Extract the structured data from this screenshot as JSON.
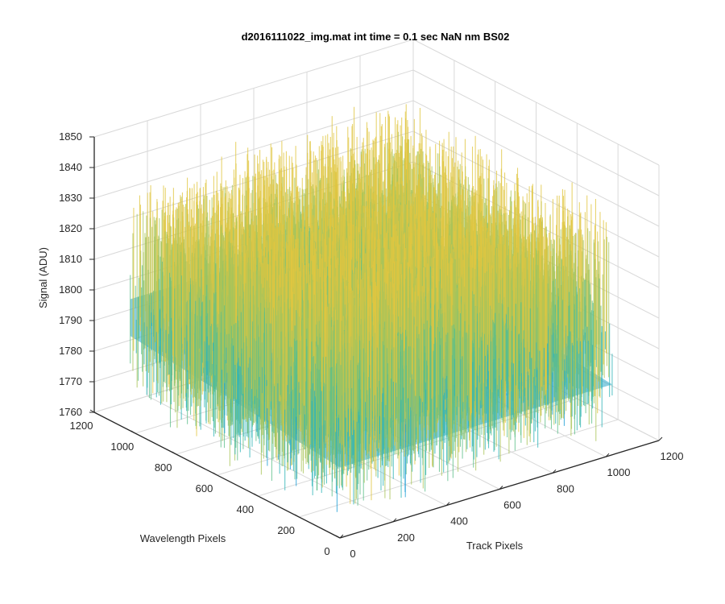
{
  "chart_data": {
    "type": "surface",
    "title": "d2016111022_img.mat int time = 0.1 sec  NaN nm BS02",
    "xlabel": "Track Pixels",
    "ylabel": "Wavelength Pixels",
    "zlabel": "Signal (ADU)",
    "xlim": [
      0,
      1200
    ],
    "ylim": [
      0,
      1200
    ],
    "zlim": [
      1760,
      1850
    ],
    "x_ticks": [
      "0",
      "200",
      "400",
      "600",
      "800",
      "1000",
      "1200"
    ],
    "y_ticks": [
      "0",
      "200",
      "400",
      "600",
      "800",
      "1000",
      "1200"
    ],
    "z_ticks": [
      "1760",
      "1770",
      "1780",
      "1790",
      "1800",
      "1810",
      "1820",
      "1830",
      "1840",
      "1850"
    ],
    "data_extent": {
      "x": [
        0,
        1024
      ],
      "y": [
        0,
        1024
      ]
    },
    "signal_mean": 1795,
    "signal_range": [
      1765,
      1845
    ],
    "grid": true,
    "colormap": [
      "#0072bd",
      "#1e9ed6",
      "#30b4b8",
      "#5dbf8a",
      "#a9c45a",
      "#e0c640"
    ]
  }
}
